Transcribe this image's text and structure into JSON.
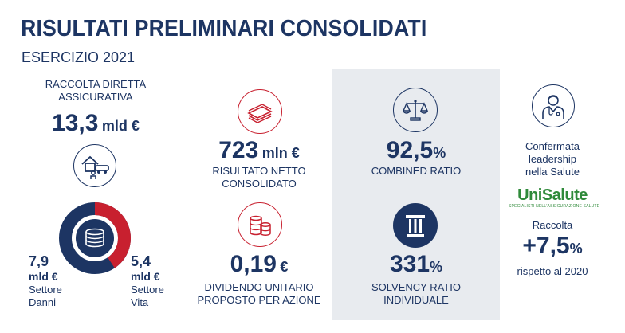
{
  "header": {
    "title": "RISULTATI PRELIMINARI CONSOLIDATI",
    "subtitle": "ESERCIZIO 2021"
  },
  "raccolta": {
    "label": "RACCOLTA DIRETTA ASSICURATIVA",
    "value": "13,3",
    "unit": "mld €",
    "danni": {
      "value": "7,9",
      "unit": "mld €",
      "label_1": "Settore",
      "label_2": "Danni"
    },
    "vita": {
      "value": "5,4",
      "unit": "mld €",
      "label_1": "Settore",
      "label_2": "Vita"
    },
    "donut": {
      "danni_share": 0.594,
      "vita_share": 0.406,
      "danni_color": "#1d3563",
      "vita_color": "#c8202f"
    }
  },
  "risultato": {
    "value": "723",
    "unit": "mln €",
    "label_1": "RISULTATO NETTO",
    "label_2": "CONSOLIDATO"
  },
  "dividendo": {
    "value": "0,19",
    "unit": "€",
    "label_1": "DIVIDENDO UNITARIO",
    "label_2": "PROPOSTO PER AZIONE"
  },
  "combined": {
    "value": "92,5",
    "unit": "%",
    "label": "COMBINED RATIO"
  },
  "solvency": {
    "value": "331",
    "unit": "%",
    "label_1": "SOLVENCY RATIO",
    "label_2": "INDIVIDUALE"
  },
  "salute": {
    "label_1": "Confermata",
    "label_2": "leadership",
    "label_3": "nella Salute",
    "logo_text": "UniSalute",
    "logo_tagline": "SPECIALISTI NELL'ASSICURAZIONE SALUTE",
    "raccolta_label": "Raccolta",
    "growth": "+7,5",
    "growth_unit": "%",
    "note": "rispetto al 2020"
  },
  "colors": {
    "navy": "#1d3563",
    "red": "#c8202f",
    "gray_panel": "#e8ebef",
    "green": "#2f8a3a"
  },
  "icons": [
    "house-car-person-icon",
    "coins-database-icon",
    "money-stack-icon",
    "coin-stack-icon",
    "scales-icon",
    "column-icon",
    "doctor-icon"
  ]
}
